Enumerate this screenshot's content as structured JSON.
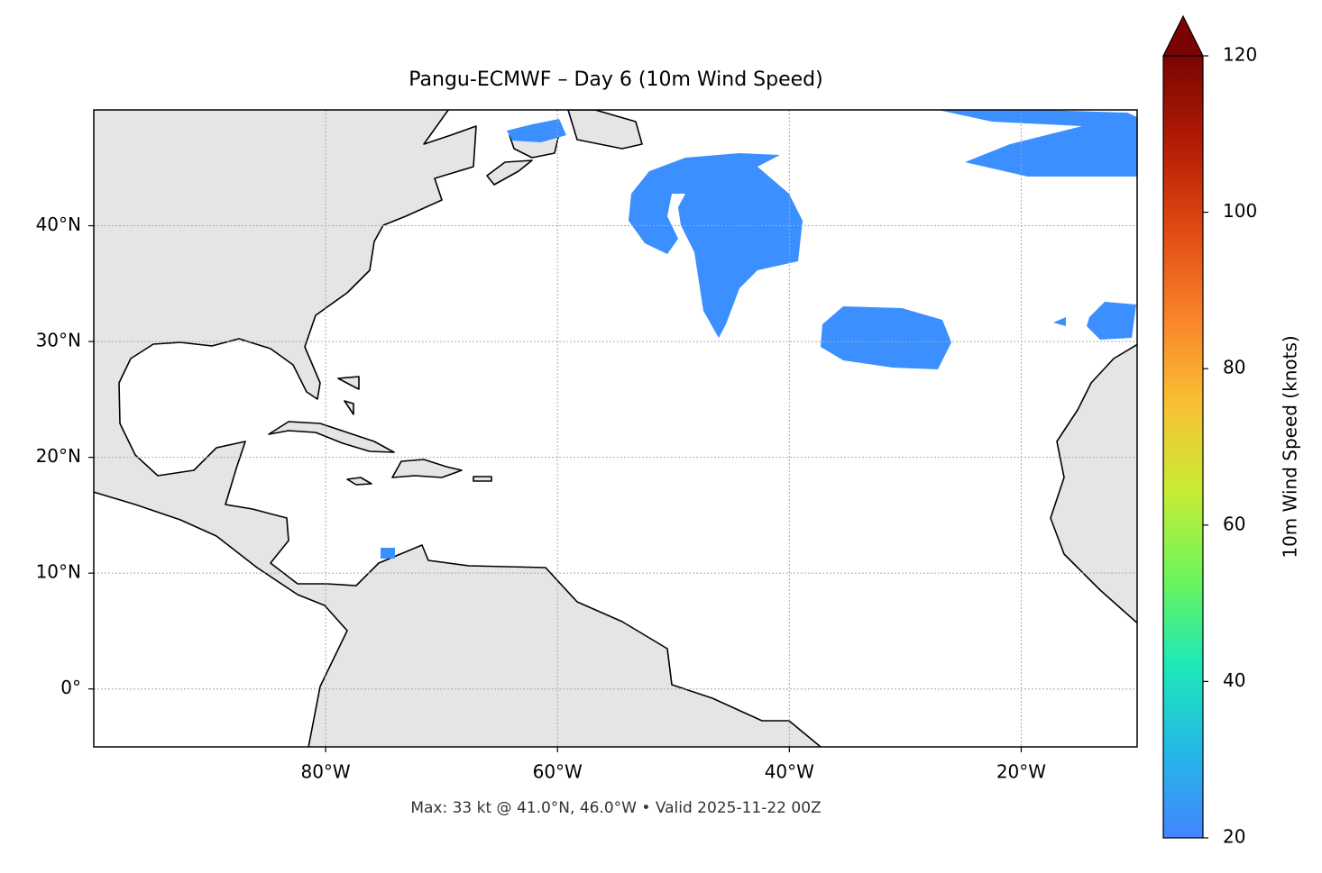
{
  "chart_data": {
    "type": "map",
    "title": "Pangu-ECMWF – Day 6 (10m Wind Speed)",
    "note": "Max: 33 kt @ 41.0°N, 46.0°W • Valid 2025-11-22 00Z",
    "xlim": [
      -100,
      -10
    ],
    "ylim": [
      -5,
      50
    ],
    "xticks": [
      {
        "value": -80,
        "label": "80°W"
      },
      {
        "value": -60,
        "label": "60°W"
      },
      {
        "value": -40,
        "label": "40°W"
      },
      {
        "value": -20,
        "label": "20°W"
      }
    ],
    "yticks": [
      {
        "value": 40,
        "label": "40°N"
      },
      {
        "value": 30,
        "label": "30°N"
      },
      {
        "value": 20,
        "label": "20°N"
      },
      {
        "value": 10,
        "label": "10°N"
      },
      {
        "value": 0,
        "label": "0°"
      }
    ],
    "grid": true,
    "colorbar": {
      "label": "10m Wind Speed (knots)",
      "lim": [
        20,
        120
      ],
      "ticks": [
        20,
        40,
        60,
        80,
        100,
        120
      ],
      "extend": "max",
      "colors": [
        "#4485ff",
        "#25b8e6",
        "#1de9b6",
        "#6ff55a",
        "#c8ec34",
        "#f9c034",
        "#f9832a",
        "#e04a12",
        "#b21c04",
        "#7a0403"
      ]
    }
  }
}
